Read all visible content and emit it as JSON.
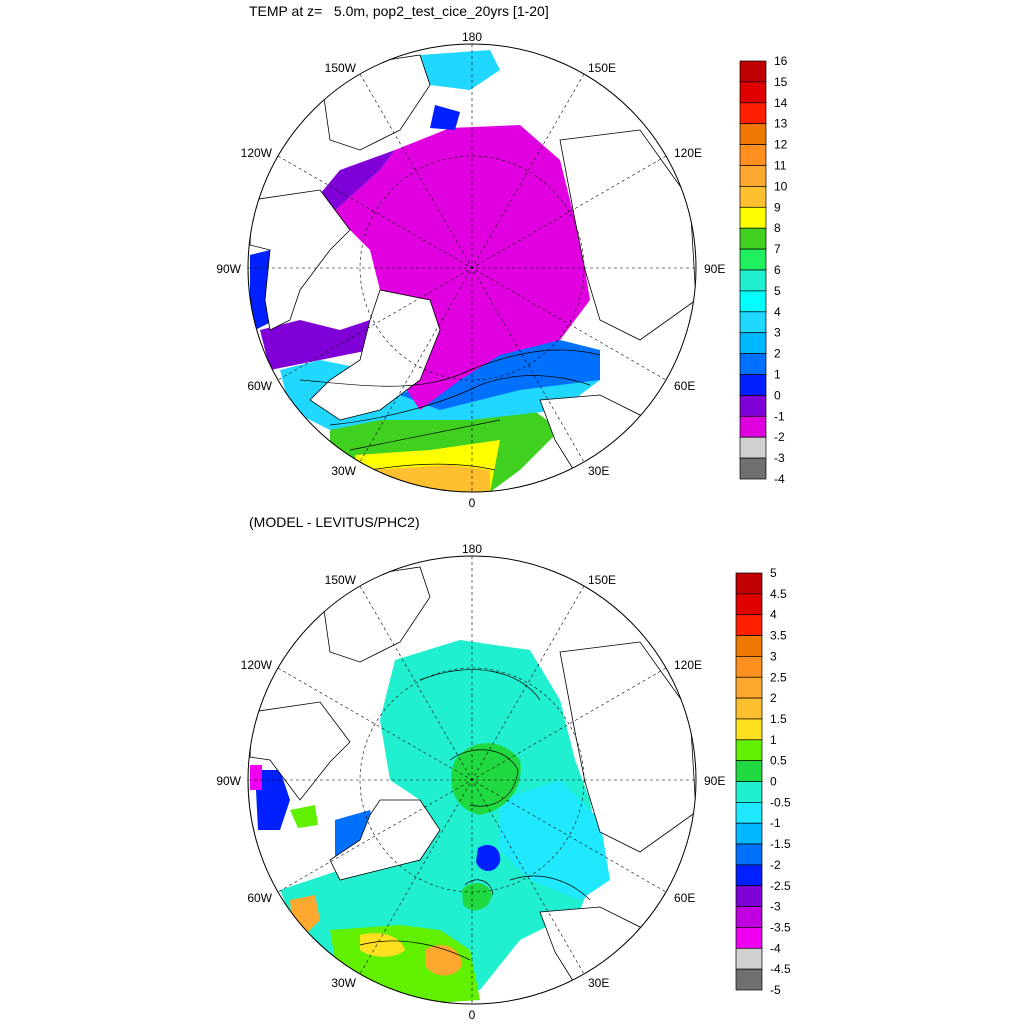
{
  "panels": [
    {
      "title": "TEMP at z=   5.0m, pop2_test_cice_20yrs [1-20]",
      "lon_labels": {
        "top": "180",
        "bottom": "0",
        "left": "90W",
        "right": "90E",
        "ul1": "150W",
        "ul2": "120W",
        "ur1": "150E",
        "ur2": "120E",
        "ll1": "60W",
        "ll2": "30W",
        "lr1": "60E",
        "lr2": "30E"
      },
      "colorbar": {
        "labels": [
          "16",
          "15",
          "14",
          "13",
          "12",
          "11",
          "10",
          "9",
          "8",
          "7",
          "6",
          "5",
          "4",
          "3",
          "2",
          "1",
          "0",
          "-1",
          "-2",
          "-3",
          "-4"
        ],
        "colors": [
          "#c00000",
          "#e00000",
          "#ff2000",
          "#f07800",
          "#ff9020",
          "#ffa830",
          "#ffc030",
          "#ffff00",
          "#40d020",
          "#20f060",
          "#20f0d0",
          "#00ffff",
          "#20d8ff",
          "#00b8ff",
          "#0070ff",
          "#0020ff",
          "#8000d8",
          "#e000e0",
          "#d0d0d0",
          "#707070"
        ]
      }
    },
    {
      "title": "(MODEL - LEVITUS/PHC2)",
      "lon_labels": {
        "top": "180",
        "bottom": "0",
        "left": "90W",
        "right": "90E",
        "ul1": "150W",
        "ul2": "120W",
        "ur1": "150E",
        "ur2": "120E",
        "ll1": "60W",
        "ll2": "30W",
        "lr1": "60E",
        "lr2": "30E"
      },
      "colorbar": {
        "labels": [
          "5",
          "4.5",
          "4",
          "3.5",
          "3",
          "2.5",
          "2",
          "1.5",
          "1",
          "0.5",
          "0",
          "-0.5",
          "-1",
          "-1.5",
          "-2",
          "-2.5",
          "-3",
          "-3.5",
          "-4",
          "-4.5",
          "-5"
        ],
        "colors": [
          "#c00000",
          "#e00000",
          "#ff2000",
          "#f07800",
          "#ff9020",
          "#ffa830",
          "#ffc030",
          "#ffe020",
          "#60f000",
          "#20d840",
          "#20f0d0",
          "#20e8ff",
          "#00b8ff",
          "#0070ff",
          "#0020ff",
          "#8000d8",
          "#c000e0",
          "#f000f0",
          "#d0d0d0",
          "#707070"
        ]
      }
    }
  ]
}
